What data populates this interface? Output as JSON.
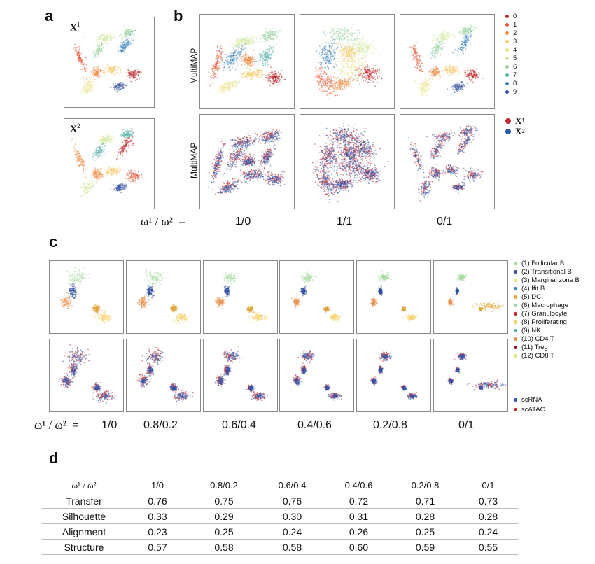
{
  "panels": {
    "a": "a",
    "b": "b",
    "c": "c",
    "d": "d"
  },
  "panel_a": {
    "top_label": "X",
    "top_sup": "1",
    "bottom_label": "X",
    "bottom_sup": "2"
  },
  "panel_b": {
    "row1_label": "MultiMAP",
    "row2_label": "MultiMAP",
    "ratio_label": "ω¹ / ω²  =",
    "ratios": [
      "1/0",
      "1/1",
      "0/1"
    ],
    "cluster_legend": [
      {
        "label": "0",
        "color": "#c0282b"
      },
      {
        "label": "1",
        "color": "#e35b3d"
      },
      {
        "label": "2",
        "color": "#f08c46"
      },
      {
        "label": "3",
        "color": "#f6c866"
      },
      {
        "label": "4",
        "color": "#eae28d"
      },
      {
        "label": "5",
        "color": "#cfe79a"
      },
      {
        "label": "6",
        "color": "#9dd4a4"
      },
      {
        "label": "7",
        "color": "#5db3ab"
      },
      {
        "label": "8",
        "color": "#3b82bb"
      },
      {
        "label": "9",
        "color": "#2e4d9f"
      }
    ],
    "modality_legend": [
      {
        "label": "X",
        "sup": "1",
        "color": "#c0282b"
      },
      {
        "label": "X",
        "sup": "2",
        "color": "#2b57b0"
      }
    ]
  },
  "panel_c": {
    "ratio_label": "ω¹ / ω²  =",
    "ratios": [
      "1/0",
      "0.8/0.2",
      "0.6/0.4",
      "0.4/0.6",
      "0.2/0.8",
      "0/1"
    ],
    "celltype_legend": [
      {
        "label": "(1) Follicular B",
        "color": "#a6dba0"
      },
      {
        "label": "(2) Transitional B",
        "color": "#2e4d9f"
      },
      {
        "label": "(3) Marginal zone B",
        "color": "#e8e47a"
      },
      {
        "label": "(4) Ifit B",
        "color": "#3b82bb"
      },
      {
        "label": "(5) DC",
        "color": "#e0a43b"
      },
      {
        "label": "(6) Macrophage",
        "color": "#9dd4a4"
      },
      {
        "label": "(7) Granulocyte",
        "color": "#c0282b"
      },
      {
        "label": "(8) Proliferating",
        "color": "#f6d066"
      },
      {
        "label": "(9) NK",
        "color": "#5db3ab"
      },
      {
        "label": "(10) CD4 T",
        "color": "#e8904a"
      },
      {
        "label": "(11) Treg",
        "color": "#8e1d2a"
      },
      {
        "label": "(12) CD8 T",
        "color": "#d9e88a"
      }
    ],
    "modality_legend": [
      {
        "label": "scRNA",
        "color": "#2b57b0"
      },
      {
        "label": "scATAC",
        "color": "#c0282b"
      }
    ]
  },
  "panel_d": {
    "columns": [
      "ω¹ / ω²",
      "1/0",
      "0.8/0.2",
      "0.6/0.4",
      "0.4/0.6",
      "0.2/0.8",
      "0/1"
    ],
    "rows": [
      {
        "name": "Transfer",
        "values": [
          "0.76",
          "0.75",
          "0.76",
          "0.72",
          "0.71",
          "0.73"
        ]
      },
      {
        "name": "Silhouette",
        "values": [
          "0.33",
          "0.29",
          "0.30",
          "0.31",
          "0.28",
          "0.28"
        ]
      },
      {
        "name": "Alignment",
        "values": [
          "0.23",
          "0.25",
          "0.24",
          "0.26",
          "0.25",
          "0.24"
        ]
      },
      {
        "name": "Structure",
        "values": [
          "0.57",
          "0.58",
          "0.58",
          "0.60",
          "0.59",
          "0.55"
        ]
      }
    ]
  }
}
